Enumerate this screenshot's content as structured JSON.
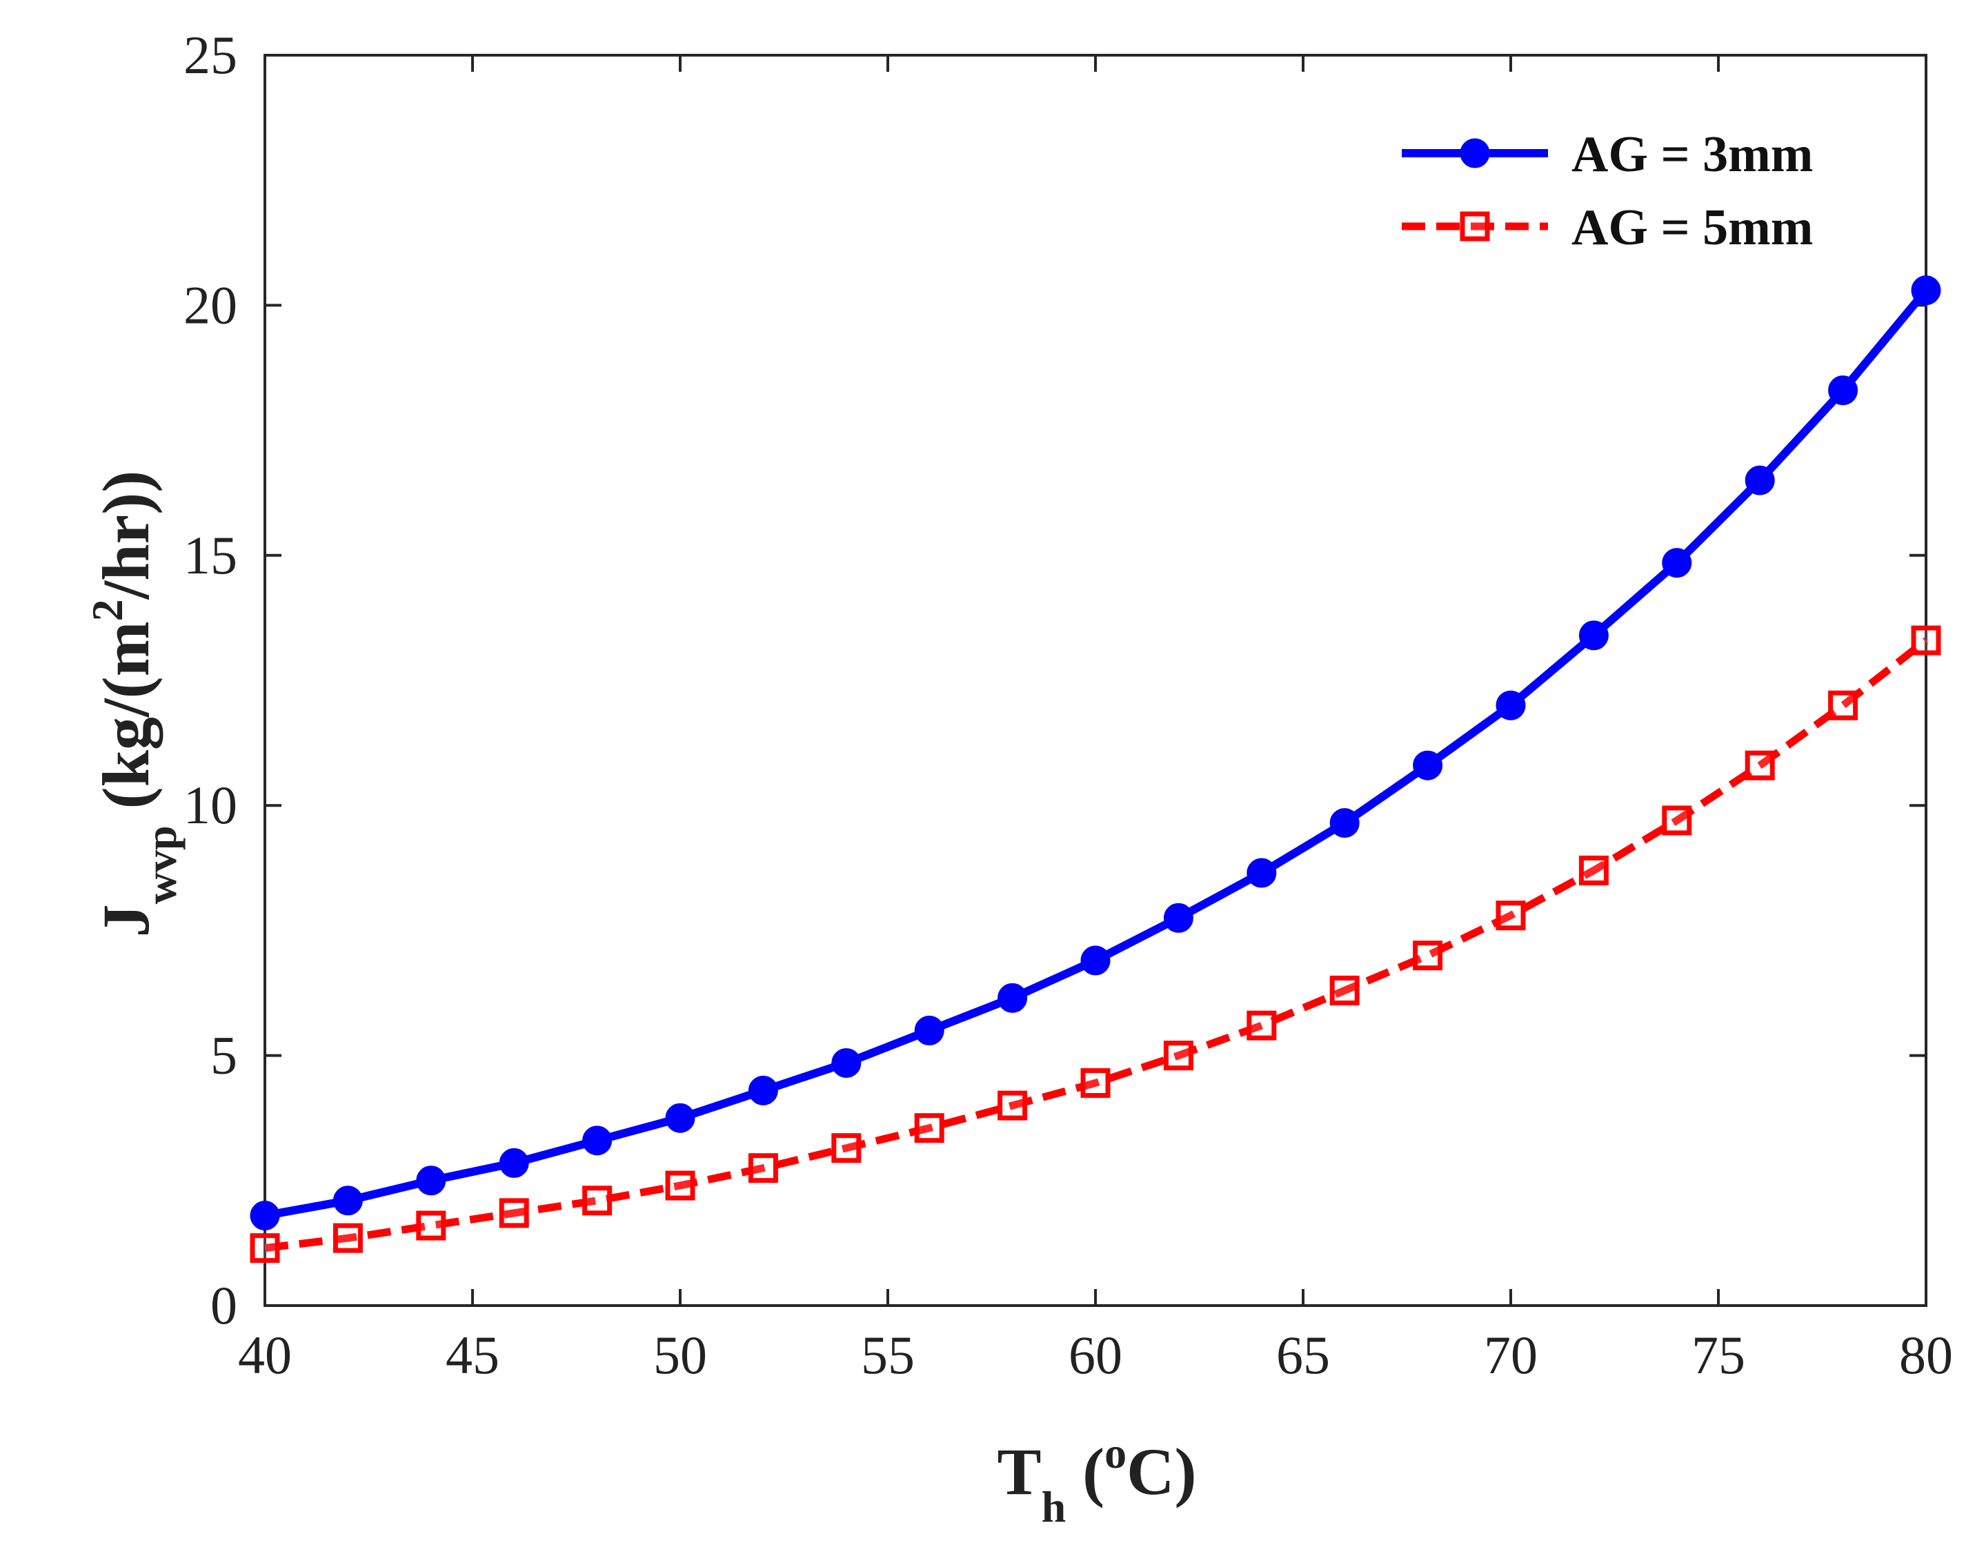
{
  "chart_data": {
    "type": "line",
    "title": "",
    "xlabel": {
      "main": "T",
      "sub": "h",
      "open": " (",
      "sup": "o",
      "close": "C)"
    },
    "ylabel": {
      "main": "J",
      "sub": "wvp",
      "open": " (kg/(m",
      "sup": "2",
      "close": "/hr))"
    },
    "xlim": [
      40,
      80
    ],
    "ylim": [
      0,
      25
    ],
    "xticks": [
      40,
      45,
      50,
      55,
      60,
      65,
      70,
      75,
      80
    ],
    "yticks": [
      0,
      5,
      10,
      15,
      20,
      25
    ],
    "grid": false,
    "legend_position": "top-right",
    "x": [
      40,
      42,
      44,
      46,
      48,
      50,
      52,
      54,
      56,
      58,
      60,
      62,
      64,
      66,
      68,
      70,
      72,
      74,
      76,
      78,
      80
    ],
    "series": [
      {
        "name": "AG = 3mm",
        "color": "#0000ff",
        "line_style": "solid",
        "marker": "circle",
        "values": [
          1.8,
          2.1,
          2.5,
          2.85,
          3.3,
          3.75,
          4.3,
          4.85,
          5.5,
          6.15,
          6.9,
          7.75,
          8.65,
          9.65,
          10.8,
          12.0,
          13.4,
          14.85,
          16.5,
          18.3,
          20.3
        ]
      },
      {
        "name": "AG = 5mm",
        "color": "#ff0000",
        "line_style": "dashed",
        "marker": "square",
        "values": [
          1.15,
          1.35,
          1.6,
          1.85,
          2.1,
          2.4,
          2.75,
          3.15,
          3.55,
          4.0,
          4.45,
          5.0,
          5.6,
          6.3,
          7.0,
          7.8,
          8.7,
          9.7,
          10.8,
          12.0,
          13.3
        ]
      }
    ]
  }
}
